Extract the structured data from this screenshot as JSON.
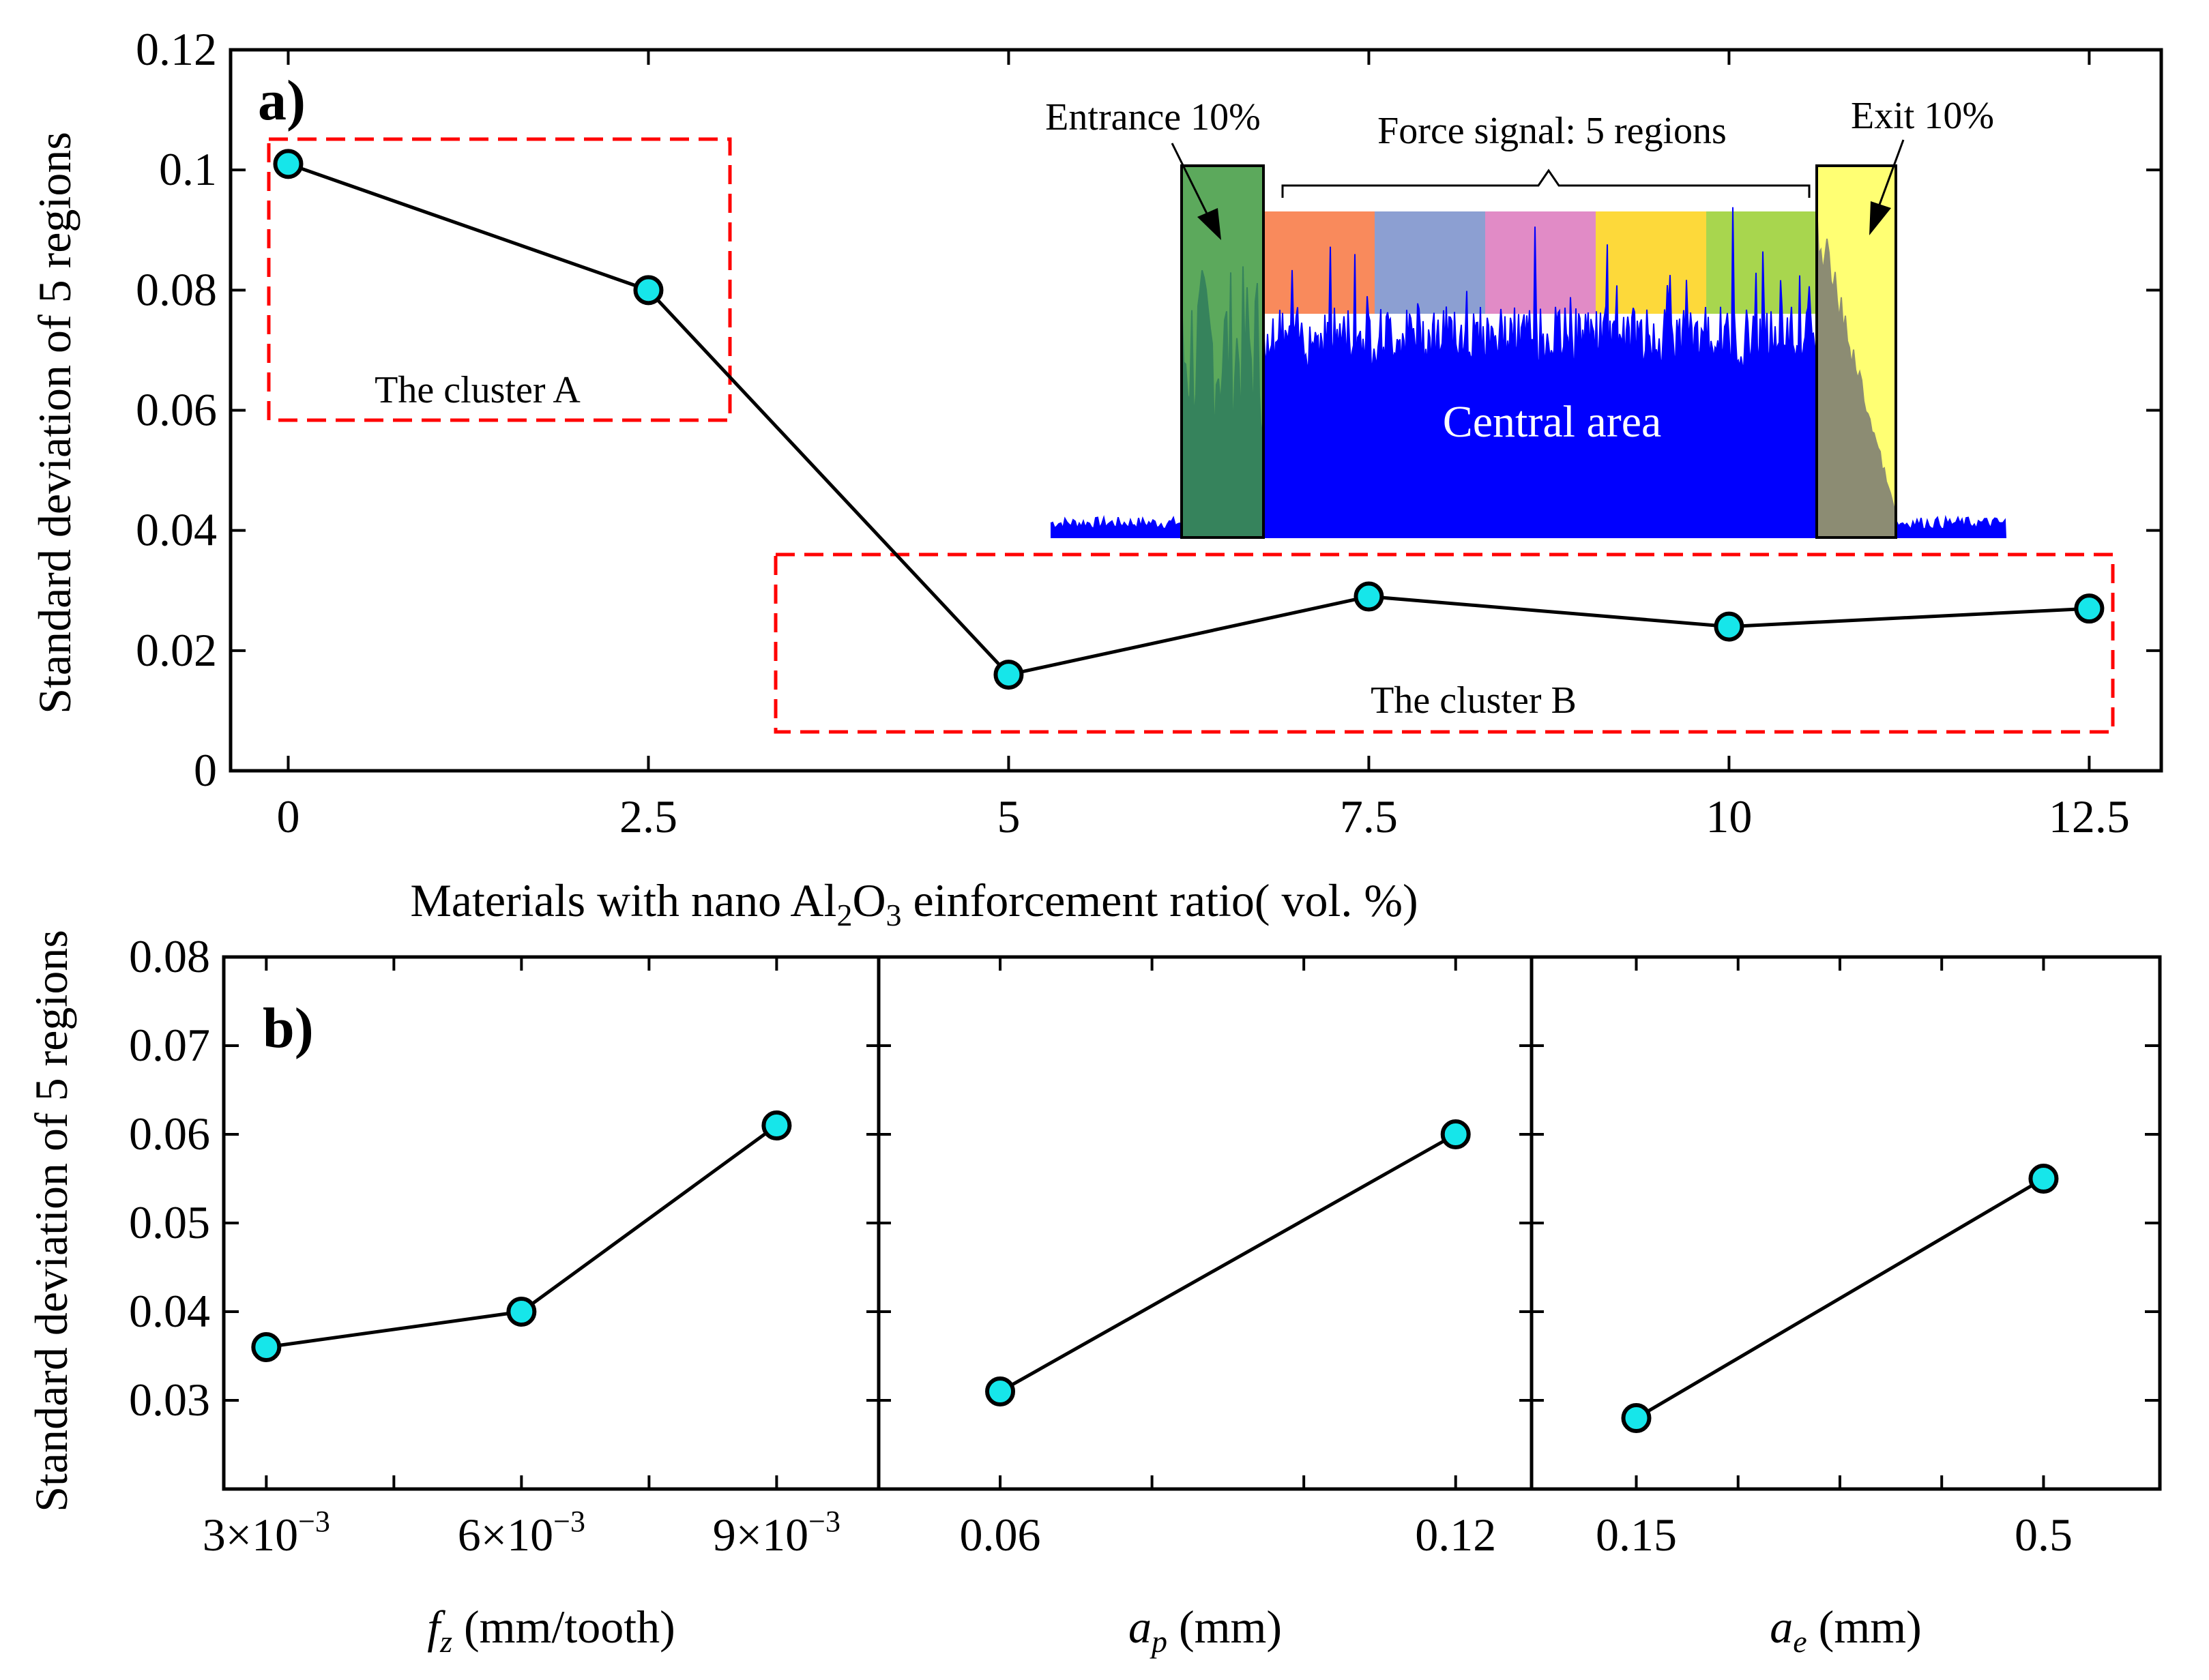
{
  "figure": {
    "chart_data": [
      {
        "type": "line",
        "panel_label": "a)",
        "xlabel": "Materials with nano Al2O3 einforcement ratio( vol. %)",
        "xlabel_parts": {
          "pre": "Materials with nano Al",
          "sub1": "2",
          "mid": "O",
          "sub2": "3",
          "post": " einforcement ratio( vol. %)"
        },
        "ylabel": "Standard deviation of 5 regions",
        "x": [
          0,
          2.5,
          5,
          7.5,
          10,
          12.5
        ],
        "values": [
          0.101,
          0.08,
          0.016,
          0.029,
          0.024,
          0.027
        ],
        "xlim": [
          -0.4,
          13.0
        ],
        "ylim": [
          0,
          0.12
        ],
        "xticks": [
          0,
          2.5,
          5,
          7.5,
          10,
          12.5
        ],
        "xtick_labels": [
          "0",
          "2.5",
          "5",
          "7.5",
          "10",
          "12.5"
        ],
        "yticks": [
          0,
          0.02,
          0.04,
          0.06,
          0.08,
          0.1,
          0.12
        ],
        "ytick_labels": [
          "0",
          "0.02",
          "0.04",
          "0.06",
          "0.08",
          "0.1",
          "0.12"
        ],
        "annotations": {
          "cluster_a": "The cluster A",
          "cluster_b": "The cluster B",
          "inset_entrance": "Entrance 10%",
          "inset_exit": "Exit 10%",
          "inset_regions": "Force signal: 5 regions",
          "inset_central": "Central area"
        }
      },
      {
        "type": "line",
        "panel_label": "b)",
        "ylabel": "Standard deviation of 5 regions",
        "ylim": [
          0.02,
          0.08
        ],
        "yticks": [
          0.02,
          0.03,
          0.04,
          0.05,
          0.06,
          0.07,
          0.08
        ],
        "ytick_labels": [
          "",
          "0.03",
          "0.04",
          "0.05",
          "0.06",
          "0.07",
          "0.08"
        ],
        "subplots": [
          {
            "xlabel_symbol": "f",
            "xlabel_sub": "z",
            "xlabel_unit": " (mm/tooth)",
            "xlim": [
              0.0025,
              0.0102
            ],
            "x": [
              0.003,
              0.006,
              0.009
            ],
            "values": [
              0.036,
              0.04,
              0.061
            ],
            "xticks": [
              0.003,
              0.006,
              0.009
            ],
            "xtick_labels": [
              "3×10",
              "6×10",
              "9×10"
            ],
            "xtick_exp": "−3",
            "minor_xticks": [
              0.0045,
              0.0075
            ]
          },
          {
            "xlabel_symbol": "a",
            "xlabel_sub": "p",
            "xlabel_unit": " (mm)",
            "xlim": [
              0.044,
              0.13
            ],
            "x": [
              0.06,
              0.12
            ],
            "values": [
              0.031,
              0.06
            ],
            "xticks": [
              0.06,
              0.12
            ],
            "xtick_labels": [
              "0.06",
              "0.12"
            ],
            "minor_xticks": [
              0.08,
              0.1
            ]
          },
          {
            "xlabel_symbol": "a",
            "xlabel_sub": "e",
            "xlabel_unit": " (mm)",
            "xlim": [
              0.06,
              0.6
            ],
            "x": [
              0.15,
              0.5
            ],
            "values": [
              0.028,
              0.055
            ],
            "xticks": [
              0.15,
              0.5
            ],
            "xtick_labels": [
              "0.15",
              "0.5"
            ],
            "minor_xticks": [
              0.2375,
              0.325,
              0.4125
            ]
          }
        ]
      }
    ],
    "colors": {
      "marker_fill": "#16e6ea",
      "line": "#000000",
      "cluster_box": "#ff0000",
      "signal": "#0000ff",
      "entrance_box": "#3f9a3f",
      "exit_box": "#ffff00",
      "regions": [
        "#f98a5c",
        "#8c9fd2",
        "#e18bc6",
        "#fdd93a",
        "#a8d64e"
      ]
    }
  }
}
